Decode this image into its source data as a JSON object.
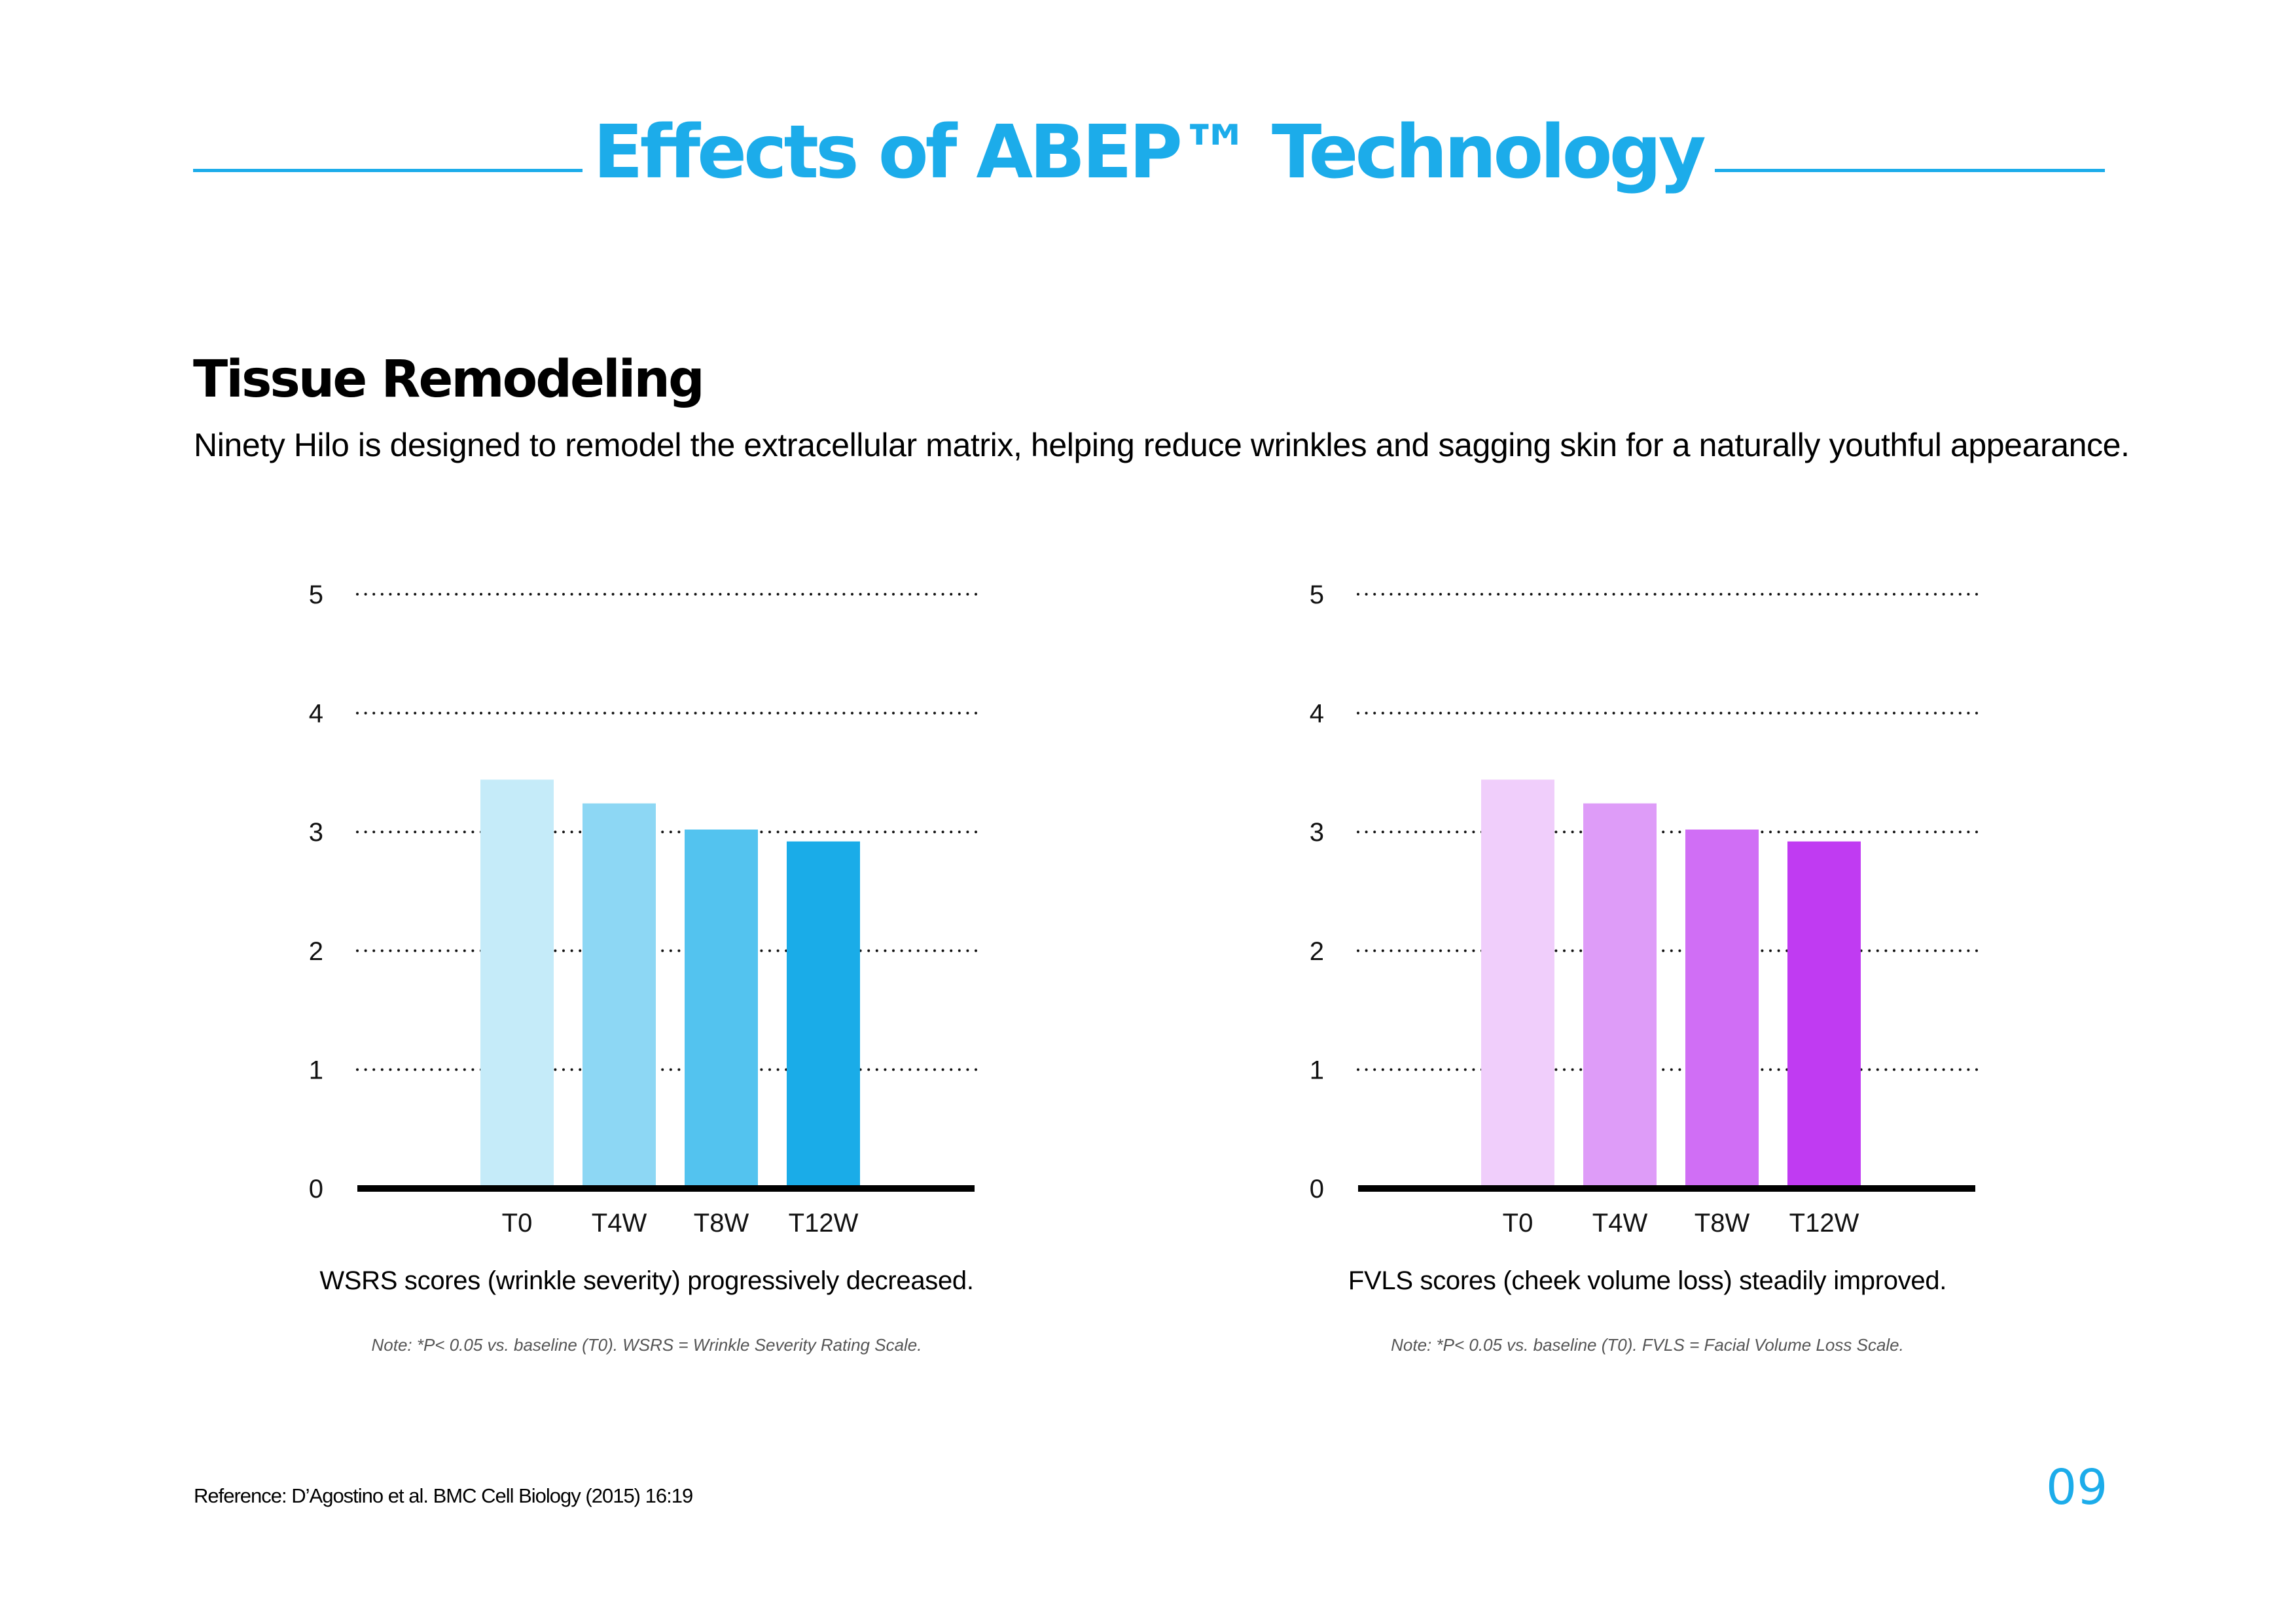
{
  "header": {
    "title": "Effects of ABEP™ Technology"
  },
  "section": {
    "heading": "Tissue Remodeling",
    "body": "Ninety Hilo is designed to remodel the extracellular matrix, helping reduce wrinkles and sagging skin for a naturally youthful appearance."
  },
  "colors": {
    "accent": "#1CACEA",
    "axis": "#000000",
    "gridline": "#111111"
  },
  "chart_data": [
    {
      "type": "bar",
      "title": "",
      "xlabel": "",
      "ylabel": "",
      "categories": [
        "T0",
        "T4W",
        "T8W",
        "T12W"
      ],
      "values": [
        3.44,
        3.24,
        3.02,
        2.92
      ],
      "bar_colors": [
        "#C5EBF9",
        "#8DD7F4",
        "#53C3EF",
        "#1AACE8"
      ],
      "ylim": [
        0,
        5
      ],
      "yticks": [
        0,
        1,
        2,
        3,
        4,
        5
      ],
      "grid": "horizontal-dotted",
      "legend": "none",
      "caption": "WSRS scores (wrinkle severity) progressively decreased.",
      "note": "Note: *P< 0.05 vs. baseline (T0). WSRS = Wrinkle Severity Rating Scale."
    },
    {
      "type": "bar",
      "title": "",
      "xlabel": "",
      "ylabel": "",
      "categories": [
        "T0",
        "T4W",
        "T8W",
        "T12W"
      ],
      "values": [
        3.44,
        3.24,
        3.02,
        2.92
      ],
      "bar_colors": [
        "#F0CEFB",
        "#DE9CF8",
        "#D06EF5",
        "#C03BF2"
      ],
      "ylim": [
        0,
        5
      ],
      "yticks": [
        0,
        1,
        2,
        3,
        4,
        5
      ],
      "grid": "horizontal-dotted",
      "legend": "none",
      "caption": "FVLS scores (cheek volume loss) steadily improved.",
      "note": "Note: *P< 0.05 vs. baseline (T0). FVLS = Facial Volume Loss Scale."
    }
  ],
  "footer": {
    "reference": "Reference: D’Agostino et al. BMC Cell Biology (2015) 16:19",
    "page_number": "09"
  }
}
